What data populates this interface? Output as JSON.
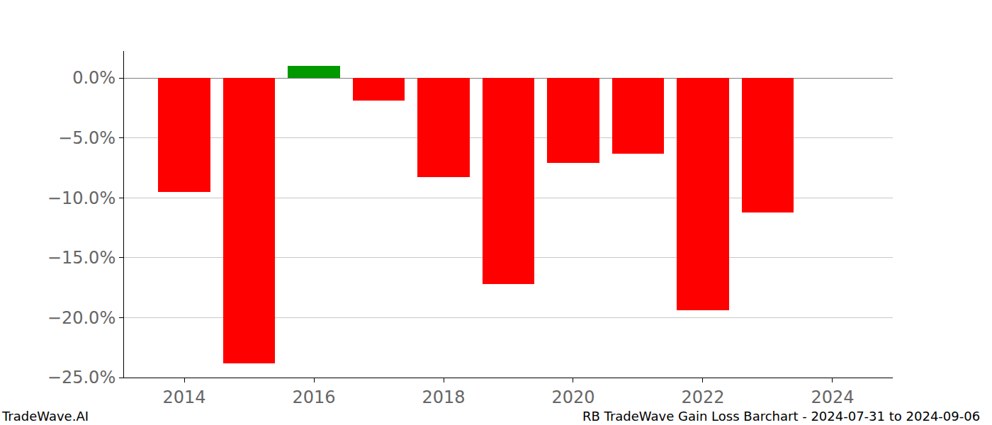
{
  "chart_data": {
    "type": "bar",
    "x": [
      2014,
      2015,
      2016,
      2017,
      2018,
      2019,
      2020,
      2021,
      2022,
      2023
    ],
    "values": [
      -9.5,
      -23.8,
      1.0,
      -1.9,
      -8.3,
      -17.2,
      -7.1,
      -6.3,
      -19.4,
      -11.2
    ],
    "colors": [
      "#ff0000",
      "#ff0000",
      "#009900",
      "#ff0000",
      "#ff0000",
      "#ff0000",
      "#ff0000",
      "#ff0000",
      "#ff0000",
      "#ff0000"
    ],
    "xlim": [
      2013.07,
      2024.93
    ],
    "xticks": [
      2014,
      2016,
      2018,
      2020,
      2022,
      2024
    ],
    "ylim": [
      -25.0,
      2.25
    ],
    "yticks": [
      {
        "value": 0,
        "label": "0.0%"
      },
      {
        "value": -5,
        "label": "−5.0%"
      },
      {
        "value": -10,
        "label": "−10.0%"
      },
      {
        "value": -15,
        "label": "−15.0%"
      },
      {
        "value": -20,
        "label": "−20.0%"
      },
      {
        "value": -25,
        "label": "−25.0%"
      }
    ],
    "grid": true,
    "annotations": [
      "TradeWave.AI",
      "RB TradeWave Gain Loss Barchart - 2024-07-31 to 2024-09-06"
    ]
  }
}
